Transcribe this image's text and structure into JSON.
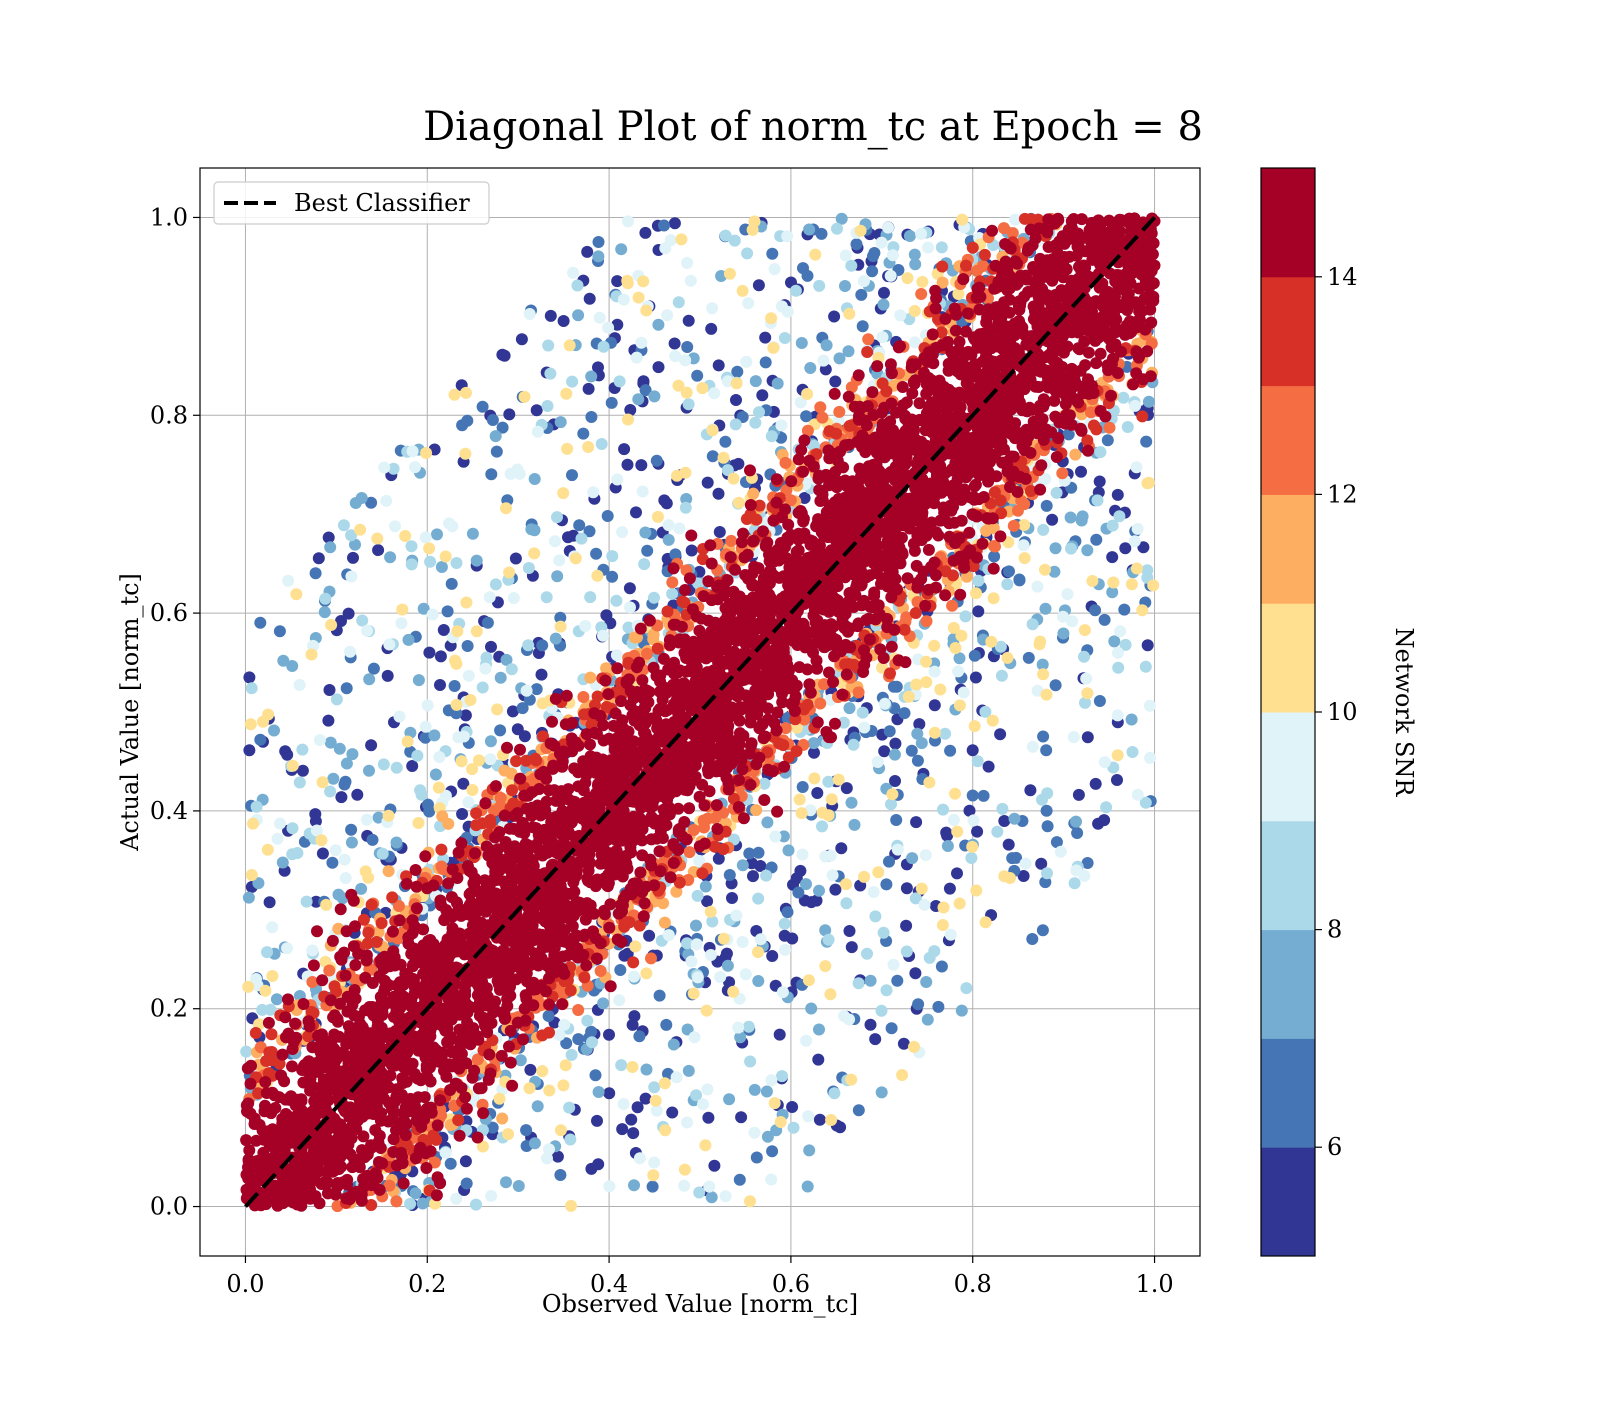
{
  "chart_data": {
    "type": "scatter",
    "title": "Diagonal Plot of norm_tc at Epoch = 8",
    "xlabel": "Observed Value [norm_tc]",
    "ylabel": "Actual Value [norm_tc]",
    "xlim": [
      -0.05,
      1.05
    ],
    "ylim": [
      -0.05,
      1.05
    ],
    "xticks": [
      0.0,
      0.2,
      0.4,
      0.6,
      0.8,
      1.0
    ],
    "xtick_labels": [
      "0.0",
      "0.2",
      "0.4",
      "0.6",
      "0.8",
      "1.0"
    ],
    "yticks": [
      0.0,
      0.2,
      0.4,
      0.6,
      0.8,
      1.0
    ],
    "ytick_labels": [
      "0.0",
      "0.2",
      "0.4",
      "0.6",
      "0.8",
      "1.0"
    ],
    "grid": true,
    "legend": {
      "placement": "upper-left",
      "entries": [
        {
          "label": "Best Classifier",
          "style": "black dashed line"
        }
      ]
    },
    "reference_line": {
      "label": "Best Classifier",
      "x": [
        0,
        1
      ],
      "y": [
        0,
        1
      ],
      "color": "#000000",
      "style": "dashed"
    },
    "point_pattern": {
      "description": "Dense band along y=x coloured by network SNR; high-SNR points lie in a tight band around the diagonal, low-SNR points scatter widely within the triangle |y - x| < 0.6.",
      "n_points": 9000,
      "seed": 8
    },
    "colorbar": {
      "label": "Network SNR",
      "range": [
        5,
        15
      ],
      "boundaries": [
        5,
        6,
        7,
        8,
        9,
        10,
        11,
        12,
        13,
        14,
        15
      ],
      "colors": [
        "#313695",
        "#4575b4",
        "#74add1",
        "#abd9e9",
        "#e0f3f8",
        "#fee090",
        "#fdae61",
        "#f46d43",
        "#d73027",
        "#a50026"
      ],
      "ticks": [
        6,
        8,
        10,
        12,
        14
      ],
      "tick_labels": [
        "6",
        "8",
        "10",
        "12",
        "14"
      ]
    }
  }
}
